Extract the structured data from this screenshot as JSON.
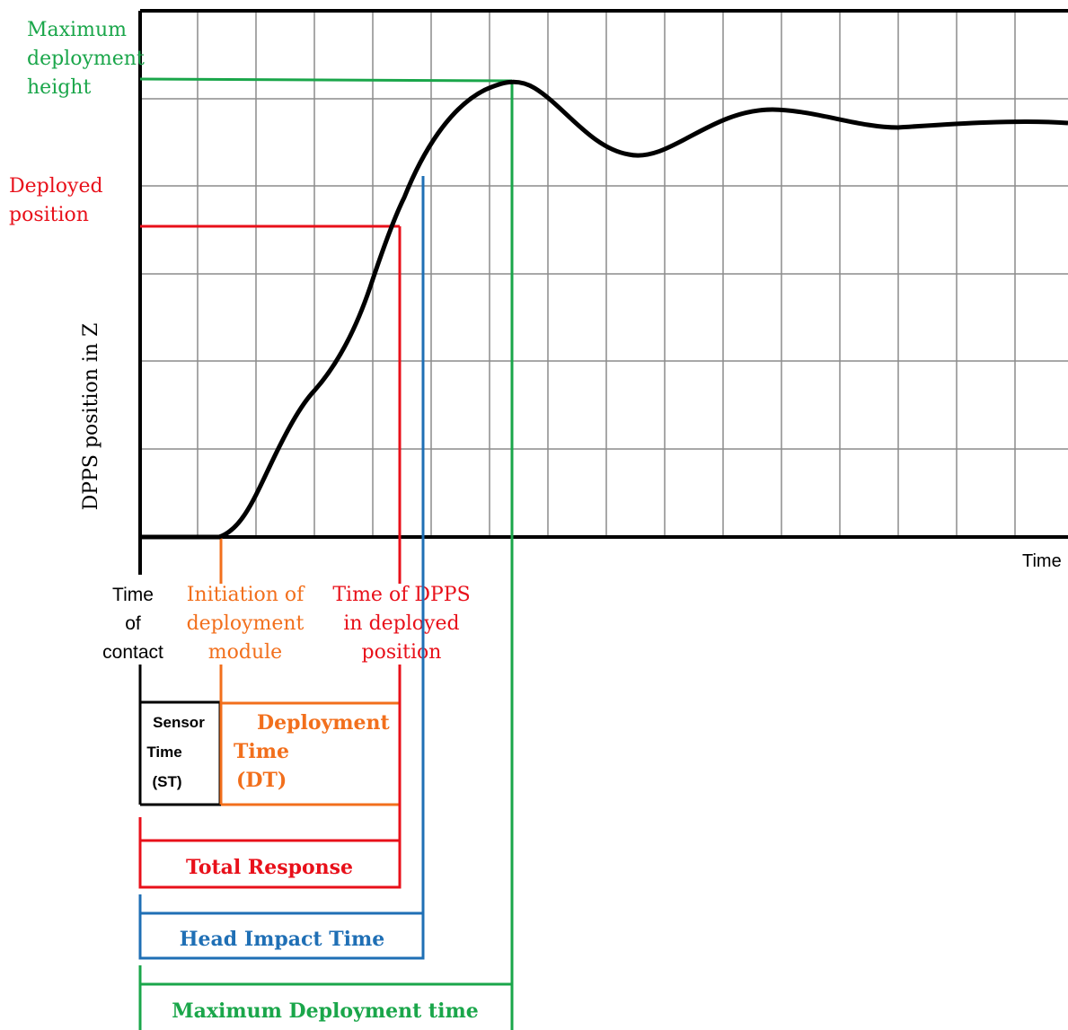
{
  "colors": {
    "black": "#000000",
    "grid": "#8c8c8c",
    "green": "#1aa64a",
    "red": "#e8101a",
    "blue": "#1f6fb5",
    "orange": "#f26f1c"
  },
  "axes": {
    "y_label": "DPPS position in Z",
    "x_label": "Time"
  },
  "left_labels": {
    "max_height": [
      "Maximum",
      "deployment",
      "height"
    ],
    "deployed_position": [
      "Deployed",
      "position"
    ]
  },
  "event_labels": {
    "contact": [
      "Time",
      "of",
      "contact"
    ],
    "initiation": [
      "Initiation of",
      "deployment",
      "module"
    ],
    "deployed": [
      "Time of DPPS",
      "in deployed",
      "position"
    ]
  },
  "intervals": {
    "sensor_time": [
      "Sensor",
      "Time",
      "(ST)"
    ],
    "deployment_time": [
      "Deployment",
      "Time",
      "(DT)"
    ],
    "total_response": "Total Response",
    "head_impact": "Head Impact Time",
    "max_deployment": "Maximum Deployment time"
  }
}
